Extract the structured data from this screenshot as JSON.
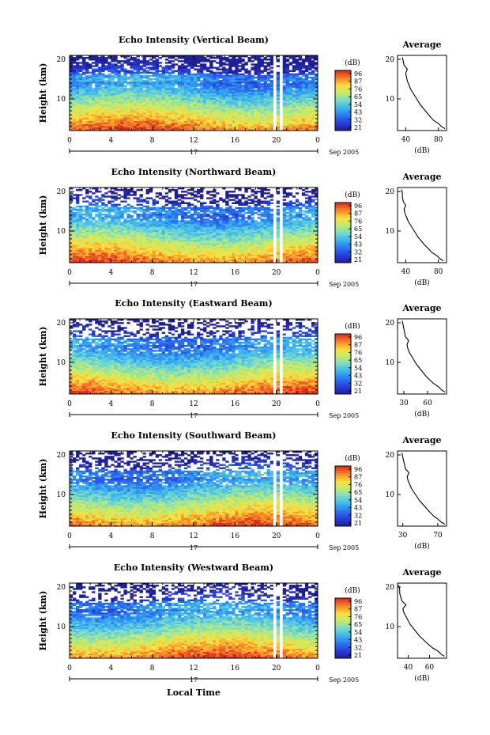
{
  "chart_data": [
    {
      "type": "heatmap",
      "title": "Echo Intensity (Vertical Beam)",
      "ylabel": "Height (km)",
      "xticks": [
        "0",
        "4",
        "8",
        "12",
        "16",
        "20",
        "0"
      ],
      "xlim": [
        0,
        24
      ],
      "yticks": [
        "10",
        "20"
      ],
      "ylim": [
        2,
        21
      ],
      "date_day": "17",
      "date_month": "Sep 2005",
      "colorbar": {
        "unit": "(dB)",
        "labels": [
          "96",
          "87",
          "76",
          "65",
          "54",
          "43",
          "32",
          "21"
        ]
      },
      "gaps_hours": [
        [
          19.7,
          20.1
        ],
        [
          20.4,
          20.6
        ]
      ],
      "average": {
        "title": "Average",
        "xlabel": "(dB)",
        "xticks": [
          "40",
          "80"
        ],
        "xlim": [
          30,
          90
        ],
        "yticks": [
          "10",
          "20"
        ],
        "profile": [
          [
            88,
            2.5
          ],
          [
            84,
            3
          ],
          [
            80,
            3.8
          ],
          [
            74,
            4.6
          ],
          [
            70,
            5.5
          ],
          [
            66,
            6.5
          ],
          [
            62,
            7.5
          ],
          [
            58,
            8.5
          ],
          [
            55,
            9.5
          ],
          [
            52,
            10.5
          ],
          [
            49,
            11.5
          ],
          [
            46,
            12.5
          ],
          [
            44,
            13.5
          ],
          [
            42,
            14.5
          ],
          [
            41,
            15.5
          ],
          [
            40,
            16.5
          ],
          [
            42,
            17.5
          ],
          [
            38,
            18.5
          ],
          [
            37,
            19.5
          ],
          [
            36,
            20.5
          ]
        ]
      }
    },
    {
      "type": "heatmap",
      "title": "Echo Intensity (Northward Beam)",
      "ylabel": "Height (km)",
      "xticks": [
        "0",
        "4",
        "8",
        "12",
        "16",
        "20",
        "0"
      ],
      "xlim": [
        0,
        24
      ],
      "yticks": [
        "10",
        "20"
      ],
      "ylim": [
        2,
        21
      ],
      "date_day": "17",
      "date_month": "Sep 2005",
      "colorbar": {
        "unit": "(dB)",
        "labels": [
          "96",
          "87",
          "76",
          "65",
          "54",
          "43",
          "32",
          "21"
        ]
      },
      "gaps_hours": [
        [
          19.7,
          20.1
        ],
        [
          20.4,
          20.6
        ]
      ],
      "average": {
        "title": "Average",
        "xlabel": "(dB)",
        "xticks": [
          "40",
          "80"
        ],
        "xlim": [
          30,
          90
        ],
        "yticks": [
          "10",
          "20"
        ],
        "profile": [
          [
            86,
            2.5
          ],
          [
            82,
            3
          ],
          [
            78,
            3.8
          ],
          [
            72,
            4.6
          ],
          [
            68,
            5.5
          ],
          [
            63,
            6.5
          ],
          [
            59,
            7.5
          ],
          [
            55,
            8.5
          ],
          [
            52,
            9.5
          ],
          [
            49,
            10.5
          ],
          [
            46,
            11.5
          ],
          [
            43,
            12.5
          ],
          [
            41,
            13.5
          ],
          [
            39,
            14.5
          ],
          [
            38,
            15.5
          ],
          [
            40,
            16.5
          ],
          [
            37,
            17.5
          ],
          [
            36,
            18.5
          ],
          [
            36,
            19.5
          ],
          [
            35,
            20.5
          ]
        ]
      }
    },
    {
      "type": "heatmap",
      "title": "Echo Intensity (Eastward Beam)",
      "ylabel": "Height (km)",
      "xticks": [
        "0",
        "4",
        "8",
        "12",
        "16",
        "20",
        "0"
      ],
      "xlim": [
        0,
        24
      ],
      "yticks": [
        "10",
        "20"
      ],
      "ylim": [
        2,
        21
      ],
      "date_day": "17",
      "date_month": "Sep 2005",
      "colorbar": {
        "unit": "(dB)",
        "labels": [
          "96",
          "87",
          "76",
          "65",
          "54",
          "43",
          "32",
          "21"
        ]
      },
      "gaps_hours": [
        [
          19.7,
          20.1
        ],
        [
          20.4,
          20.6
        ]
      ],
      "average": {
        "title": "Average",
        "xlabel": "(dB)",
        "xticks": [
          "30",
          "60"
        ],
        "xlim": [
          22,
          84
        ],
        "yticks": [
          "10",
          "20"
        ],
        "profile": [
          [
            82,
            2.5
          ],
          [
            78,
            3
          ],
          [
            74,
            3.8
          ],
          [
            68,
            4.6
          ],
          [
            63,
            5.5
          ],
          [
            58,
            6.5
          ],
          [
            54,
            7.5
          ],
          [
            50,
            8.5
          ],
          [
            46,
            9.5
          ],
          [
            43,
            10.5
          ],
          [
            40,
            11.5
          ],
          [
            37,
            12.5
          ],
          [
            35,
            13.5
          ],
          [
            34,
            14.5
          ],
          [
            36,
            15.5
          ],
          [
            32,
            16.5
          ],
          [
            31,
            17.5
          ],
          [
            30,
            18.5
          ],
          [
            29,
            19.5
          ],
          [
            28,
            20.5
          ]
        ]
      }
    },
    {
      "type": "heatmap",
      "title": "Echo Intensity (Southward Beam)",
      "ylabel": "Height (km)",
      "xticks": [
        "0",
        "4",
        "8",
        "12",
        "16",
        "20",
        "0"
      ],
      "xlim": [
        0,
        24
      ],
      "yticks": [
        "10",
        "20"
      ],
      "ylim": [
        2,
        21
      ],
      "date_day": "17",
      "date_month": "Sep 2005",
      "colorbar": {
        "unit": "(dB)",
        "labels": [
          "96",
          "87",
          "76",
          "65",
          "54",
          "43",
          "32",
          "21"
        ]
      },
      "gaps_hours": [
        [
          19.7,
          20.1
        ],
        [
          20.4,
          20.6
        ]
      ],
      "average": {
        "title": "Average",
        "xlabel": "(dB)",
        "xticks": [
          "30",
          "70"
        ],
        "xlim": [
          24,
          80
        ],
        "yticks": [
          "10",
          "20"
        ],
        "profile": [
          [
            78,
            2.5
          ],
          [
            74,
            3
          ],
          [
            70,
            3.8
          ],
          [
            65,
            4.6
          ],
          [
            61,
            5.5
          ],
          [
            57,
            6.5
          ],
          [
            53,
            7.5
          ],
          [
            49,
            8.5
          ],
          [
            46,
            9.5
          ],
          [
            43,
            10.5
          ],
          [
            40,
            11.5
          ],
          [
            38,
            12.5
          ],
          [
            36,
            13.5
          ],
          [
            35,
            14.5
          ],
          [
            37,
            15.5
          ],
          [
            33,
            16.5
          ],
          [
            32,
            17.5
          ],
          [
            31,
            18.5
          ],
          [
            30,
            19.5
          ],
          [
            29,
            20.5
          ]
        ]
      }
    },
    {
      "type": "heatmap",
      "title": "Echo Intensity (Westward Beam)",
      "ylabel": "Height (km)",
      "xticks": [
        "0",
        "4",
        "8",
        "12",
        "16",
        "20",
        "0"
      ],
      "xlim": [
        0,
        24
      ],
      "yticks": [
        "10",
        "20"
      ],
      "ylim": [
        2,
        21
      ],
      "date_day": "17",
      "date_month": "Sep 2005",
      "colorbar": {
        "unit": "(dB)",
        "labels": [
          "96",
          "87",
          "76",
          "65",
          "54",
          "43",
          "32",
          "21"
        ]
      },
      "gaps_hours": [
        [
          19.7,
          20.1
        ],
        [
          20.4,
          20.6
        ]
      ],
      "average": {
        "title": "Average",
        "xlabel": "(dB)",
        "xticks": [
          "40",
          "60"
        ],
        "xlim": [
          30,
          76
        ],
        "yticks": [
          "10",
          "20"
        ],
        "profile": [
          [
            74,
            2.5
          ],
          [
            71,
            3
          ],
          [
            68,
            3.8
          ],
          [
            63,
            4.6
          ],
          [
            59,
            5.5
          ],
          [
            55,
            6.5
          ],
          [
            51,
            7.5
          ],
          [
            48,
            8.5
          ],
          [
            45,
            9.5
          ],
          [
            42,
            10.5
          ],
          [
            40,
            11.5
          ],
          [
            38,
            12.5
          ],
          [
            36,
            13.5
          ],
          [
            35,
            14.5
          ],
          [
            38,
            15.5
          ],
          [
            34,
            16.5
          ],
          [
            33,
            17.5
          ],
          [
            32,
            18.5
          ],
          [
            32,
            19.5
          ],
          [
            31,
            20.5
          ]
        ]
      }
    }
  ],
  "common": {
    "xlabel": "Local Time"
  }
}
